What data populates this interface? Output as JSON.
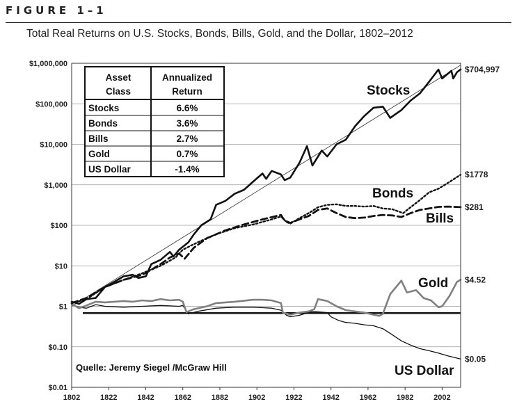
{
  "figure": {
    "label": "FIGURE 1–1",
    "title": "Total Real Returns on U.S. Stocks, Bonds, Bills, Gold, and the Dollar, 1802–2012"
  },
  "chart_data": {
    "type": "line",
    "yscale": "log",
    "ylim": [
      0.01,
      1000000
    ],
    "xlim": [
      1802,
      2012
    ],
    "x_ticks": [
      "1802",
      "1822",
      "1842",
      "1862",
      "1882",
      "1902",
      "1922",
      "1942",
      "1962",
      "1982",
      "2002"
    ],
    "y_ticks": [
      "$1,000,000",
      "$100,000",
      "$10,000",
      "$1,000",
      "$100",
      "$10",
      "$1",
      "$0.10",
      "$0.01"
    ],
    "grid": true,
    "series": [
      {
        "name": "Stocks",
        "color": "#111111",
        "end_label": "$704,997",
        "points": [
          [
            1802,
            1.3
          ],
          [
            1806,
            1.15
          ],
          [
            1810,
            1.5
          ],
          [
            1815,
            1.6
          ],
          [
            1820,
            3
          ],
          [
            1825,
            4
          ],
          [
            1830,
            5.5
          ],
          [
            1835,
            6
          ],
          [
            1838,
            5
          ],
          [
            1842,
            5.5
          ],
          [
            1845,
            11
          ],
          [
            1850,
            14
          ],
          [
            1855,
            22
          ],
          [
            1857,
            17
          ],
          [
            1860,
            25
          ],
          [
            1865,
            38
          ],
          [
            1868,
            60
          ],
          [
            1872,
            100
          ],
          [
            1877,
            140
          ],
          [
            1880,
            320
          ],
          [
            1885,
            400
          ],
          [
            1890,
            600
          ],
          [
            1895,
            750
          ],
          [
            1900,
            1200
          ],
          [
            1905,
            1900
          ],
          [
            1907,
            1400
          ],
          [
            1910,
            2200
          ],
          [
            1915,
            1800
          ],
          [
            1917,
            1300
          ],
          [
            1920,
            1500
          ],
          [
            1925,
            3500
          ],
          [
            1929,
            9000
          ],
          [
            1932,
            3000
          ],
          [
            1937,
            7000
          ],
          [
            1940,
            5000
          ],
          [
            1945,
            10000
          ],
          [
            1950,
            13000
          ],
          [
            1955,
            28000
          ],
          [
            1960,
            50000
          ],
          [
            1965,
            80000
          ],
          [
            1970,
            85000
          ],
          [
            1974,
            45000
          ],
          [
            1980,
            70000
          ],
          [
            1985,
            120000
          ],
          [
            1990,
            180000
          ],
          [
            1995,
            350000
          ],
          [
            2000,
            700000
          ],
          [
            2002,
            420000
          ],
          [
            2007,
            650000
          ],
          [
            2008,
            420000
          ],
          [
            2010,
            600000
          ],
          [
            2012,
            704997
          ]
        ]
      },
      {
        "name": "Bonds",
        "color": "#111111",
        "end_label": "$1778",
        "points": [
          [
            1802,
            1.2
          ],
          [
            1810,
            1.5
          ],
          [
            1820,
            3
          ],
          [
            1830,
            4.5
          ],
          [
            1840,
            6.5
          ],
          [
            1850,
            10
          ],
          [
            1858,
            16
          ],
          [
            1862,
            25
          ],
          [
            1870,
            38
          ],
          [
            1880,
            60
          ],
          [
            1890,
            85
          ],
          [
            1900,
            105
          ],
          [
            1910,
            140
          ],
          [
            1915,
            165
          ],
          [
            1918,
            120
          ],
          [
            1920,
            110
          ],
          [
            1925,
            150
          ],
          [
            1930,
            200
          ],
          [
            1935,
            280
          ],
          [
            1940,
            320
          ],
          [
            1945,
            330
          ],
          [
            1950,
            300
          ],
          [
            1955,
            300
          ],
          [
            1960,
            290
          ],
          [
            1965,
            300
          ],
          [
            1970,
            260
          ],
          [
            1975,
            250
          ],
          [
            1981,
            200
          ],
          [
            1985,
            280
          ],
          [
            1990,
            420
          ],
          [
            1995,
            650
          ],
          [
            2000,
            800
          ],
          [
            2005,
            1100
          ],
          [
            2012,
            1778
          ]
        ]
      },
      {
        "name": "Bills",
        "color": "#111111",
        "end_label": "$281",
        "points": [
          [
            1802,
            1.2
          ],
          [
            1810,
            1.6
          ],
          [
            1820,
            3
          ],
          [
            1830,
            4.5
          ],
          [
            1840,
            6
          ],
          [
            1845,
            8
          ],
          [
            1850,
            11
          ],
          [
            1855,
            16
          ],
          [
            1860,
            20
          ],
          [
            1863,
            15
          ],
          [
            1868,
            28
          ],
          [
            1875,
            48
          ],
          [
            1885,
            75
          ],
          [
            1895,
            105
          ],
          [
            1905,
            140
          ],
          [
            1915,
            180
          ],
          [
            1917,
            130
          ],
          [
            1920,
            115
          ],
          [
            1925,
            140
          ],
          [
            1930,
            170
          ],
          [
            1935,
            240
          ],
          [
            1940,
            260
          ],
          [
            1945,
            200
          ],
          [
            1950,
            160
          ],
          [
            1955,
            150
          ],
          [
            1960,
            155
          ],
          [
            1965,
            170
          ],
          [
            1970,
            180
          ],
          [
            1975,
            175
          ],
          [
            1980,
            160
          ],
          [
            1985,
            200
          ],
          [
            1990,
            240
          ],
          [
            1995,
            260
          ],
          [
            2000,
            285
          ],
          [
            2005,
            290
          ],
          [
            2012,
            281
          ]
        ]
      },
      {
        "name": "Gold",
        "color": "#808080",
        "end_label": "$4.52",
        "points": [
          [
            1802,
            1.15
          ],
          [
            1806,
            0.9
          ],
          [
            1810,
            1.05
          ],
          [
            1815,
            1.3
          ],
          [
            1820,
            1.25
          ],
          [
            1830,
            1.35
          ],
          [
            1835,
            1.3
          ],
          [
            1840,
            1.4
          ],
          [
            1845,
            1.35
          ],
          [
            1850,
            1.5
          ],
          [
            1855,
            1.4
          ],
          [
            1860,
            1.45
          ],
          [
            1862,
            1.3
          ],
          [
            1864,
            0.72
          ],
          [
            1868,
            0.85
          ],
          [
            1875,
            1.0
          ],
          [
            1880,
            1.2
          ],
          [
            1890,
            1.3
          ],
          [
            1900,
            1.45
          ],
          [
            1905,
            1.45
          ],
          [
            1910,
            1.4
          ],
          [
            1915,
            1.2
          ],
          [
            1916,
            0.7
          ],
          [
            1920,
            0.62
          ],
          [
            1925,
            0.7
          ],
          [
            1930,
            0.75
          ],
          [
            1933,
            0.85
          ],
          [
            1935,
            1.5
          ],
          [
            1940,
            1.35
          ],
          [
            1945,
            1.0
          ],
          [
            1950,
            0.8
          ],
          [
            1960,
            0.7
          ],
          [
            1965,
            0.62
          ],
          [
            1968,
            0.58
          ],
          [
            1970,
            0.65
          ],
          [
            1974,
            2.0
          ],
          [
            1980,
            4.3
          ],
          [
            1983,
            2.2
          ],
          [
            1988,
            2.5
          ],
          [
            1992,
            1.6
          ],
          [
            1996,
            1.4
          ],
          [
            2000,
            0.95
          ],
          [
            2002,
            1.0
          ],
          [
            2006,
            1.8
          ],
          [
            2010,
            4.0
          ],
          [
            2012,
            4.52
          ]
        ]
      },
      {
        "name": "US Dollar",
        "color": "#111111",
        "end_label": "$0.05",
        "points": [
          [
            1802,
            1.1
          ],
          [
            1806,
            0.95
          ],
          [
            1810,
            0.9
          ],
          [
            1815,
            1.1
          ],
          [
            1820,
            1.0
          ],
          [
            1830,
            0.95
          ],
          [
            1840,
            1.0
          ],
          [
            1850,
            1.05
          ],
          [
            1860,
            1.0
          ],
          [
            1862,
            1.05
          ],
          [
            1865,
            0.65
          ],
          [
            1870,
            0.75
          ],
          [
            1880,
            0.9
          ],
          [
            1890,
            0.95
          ],
          [
            1900,
            0.95
          ],
          [
            1910,
            0.9
          ],
          [
            1915,
            0.8
          ],
          [
            1918,
            0.6
          ],
          [
            1920,
            0.55
          ],
          [
            1925,
            0.6
          ],
          [
            1932,
            0.75
          ],
          [
            1940,
            0.7
          ],
          [
            1942,
            0.55
          ],
          [
            1946,
            0.45
          ],
          [
            1950,
            0.4
          ],
          [
            1955,
            0.38
          ],
          [
            1960,
            0.35
          ],
          [
            1965,
            0.33
          ],
          [
            1970,
            0.28
          ],
          [
            1975,
            0.2
          ],
          [
            1980,
            0.14
          ],
          [
            1985,
            0.11
          ],
          [
            1990,
            0.09
          ],
          [
            1995,
            0.08
          ],
          [
            2000,
            0.07
          ],
          [
            2005,
            0.06
          ],
          [
            2012,
            0.05
          ]
        ]
      }
    ],
    "trendline": {
      "from": [
        1802,
        1.0
      ],
      "to": [
        2012,
        900000
      ]
    },
    "baseline": {
      "value": 0.68,
      "from": 1808,
      "to": 2012
    },
    "table": {
      "headers": [
        [
          "Asset",
          "Class"
        ],
        [
          "Annualized",
          "Return"
        ]
      ],
      "rows": [
        {
          "asset": "Stocks",
          "ret": "6.6%"
        },
        {
          "asset": "Bonds",
          "ret": "3.6%"
        },
        {
          "asset": "Bills",
          "ret": "2.7%"
        },
        {
          "asset": "Gold",
          "ret": "0.7%"
        },
        {
          "asset": "US Dollar",
          "ret": "-1.4%"
        }
      ]
    },
    "labels": {
      "stocks": "Stocks",
      "bonds": "Bonds",
      "bills": "Bills",
      "gold": "Gold",
      "dollar": "US Dollar",
      "source": "Quelle: Jeremy Siegel /McGraw Hill"
    }
  }
}
